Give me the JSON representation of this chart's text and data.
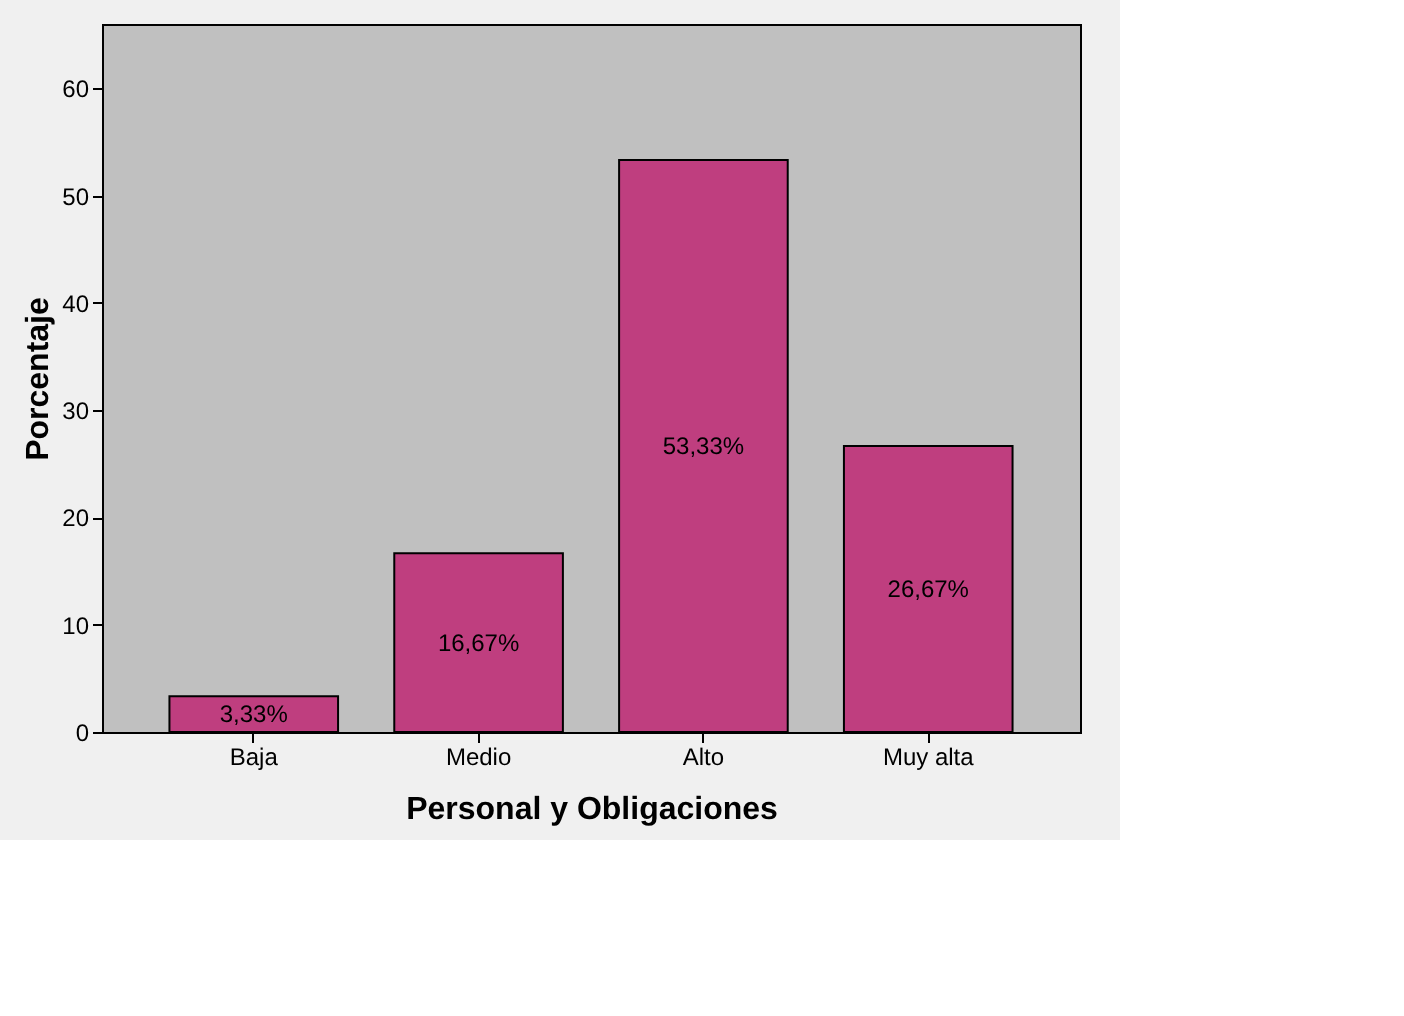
{
  "chart_data": {
    "type": "bar",
    "xlabel": "Personal y Obligaciones",
    "ylabel": "Porcentaje",
    "categories": [
      "Baja",
      "Medio",
      "Alto",
      "Muy alta"
    ],
    "values": [
      3.33,
      16.67,
      53.33,
      26.67
    ],
    "value_labels": [
      "3,33%",
      "16,67%",
      "53,33%",
      "26,67%"
    ],
    "color": "#bf3e7f",
    "ylim": [
      0,
      66
    ],
    "yticks": [
      0,
      10,
      20,
      30,
      40,
      50,
      60
    ],
    "grid": false
  }
}
